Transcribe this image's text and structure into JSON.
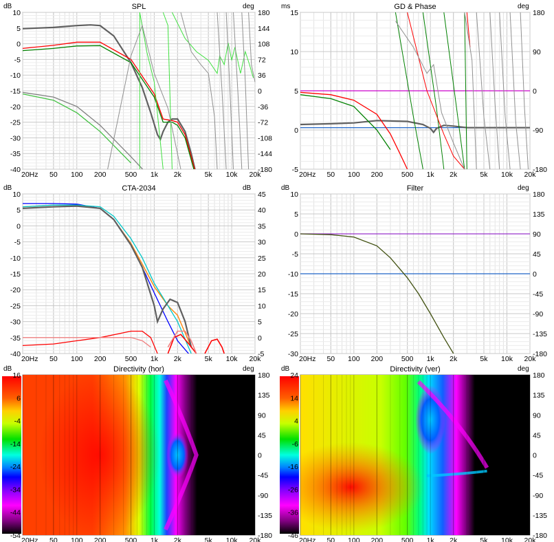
{
  "panels": [
    {
      "title": "SPL",
      "left_unit": "dB",
      "right_unit": "deg",
      "left_ticks": [
        "10",
        "5",
        "0",
        "-5",
        "-10",
        "-15",
        "-20",
        "-25",
        "-30",
        "-35",
        "-40"
      ],
      "right_ticks": [
        "180",
        "144",
        "108",
        "72",
        "36",
        "0",
        "-36",
        "-72",
        "-108",
        "-144",
        "-180"
      ],
      "x_ticks": [
        "20Hz",
        "50",
        "100",
        "200",
        "500",
        "1k",
        "2k",
        "5k",
        "10k",
        "20k"
      ]
    },
    {
      "title": "GD & Phase",
      "left_unit": "ms",
      "right_unit": "deg",
      "left_ticks": [
        "15",
        "10",
        "5",
        "0",
        "-5"
      ],
      "right_ticks": [
        "180",
        "90",
        "0",
        "-90",
        "-180"
      ],
      "x_ticks": [
        "20Hz",
        "50",
        "100",
        "200",
        "500",
        "1k",
        "2k",
        "5k",
        "10k",
        "20k"
      ]
    },
    {
      "title": "CTA-2034",
      "left_unit": "dB",
      "right_unit": "dB",
      "left_ticks": [
        "10",
        "5",
        "0",
        "-5",
        "-10",
        "-15",
        "-20",
        "-25",
        "-30",
        "-35",
        "-40"
      ],
      "right_ticks": [
        "45",
        "40",
        "35",
        "30",
        "25",
        "20",
        "15",
        "10",
        "5",
        "0",
        "-5"
      ],
      "x_ticks": [
        "20Hz",
        "50",
        "100",
        "200",
        "500",
        "1k",
        "2k",
        "5k",
        "10k",
        "20k"
      ]
    },
    {
      "title": "Filter",
      "left_unit": "dB",
      "right_unit": "deg",
      "left_ticks": [
        "10",
        "5",
        "0",
        "-5",
        "-10",
        "-15",
        "-20",
        "-25",
        "-30"
      ],
      "right_ticks": [
        "180",
        "135",
        "90",
        "45",
        "0",
        "-45",
        "-90",
        "-135",
        "-180"
      ],
      "x_ticks": [
        "20Hz",
        "50",
        "100",
        "200",
        "500",
        "1k",
        "2k",
        "5k",
        "10k",
        "20k"
      ]
    },
    {
      "title": "Directivity (hor)",
      "left_unit": "dB",
      "right_unit": "deg",
      "scale_ticks": [
        "16",
        "6",
        "-4",
        "-14",
        "-24",
        "-34",
        "-44",
        "-54"
      ],
      "right_ticks": [
        "180",
        "135",
        "90",
        "45",
        "0",
        "-45",
        "-90",
        "-135",
        "-180"
      ],
      "x_ticks": [
        "20Hz",
        "50",
        "100",
        "200",
        "500",
        "1k",
        "2k",
        "5k",
        "10k",
        "20k"
      ]
    },
    {
      "title": "Directivity (ver)",
      "left_unit": "dB",
      "right_unit": "deg",
      "scale_ticks": [
        "24",
        "14",
        "4",
        "-6",
        "-16",
        "-26",
        "-36",
        "-46"
      ],
      "right_ticks": [
        "180",
        "135",
        "90",
        "45",
        "0",
        "-45",
        "-90",
        "-135",
        "-180"
      ],
      "x_ticks": [
        "20Hz",
        "50",
        "100",
        "200",
        "500",
        "1k",
        "2k",
        "5k",
        "10k",
        "20k"
      ]
    }
  ],
  "chart_data": [
    {
      "type": "line",
      "title": "SPL",
      "xscale": "log",
      "xlim": [
        20,
        20000
      ],
      "ylim": [
        -40,
        10
      ],
      "y2lim": [
        -180,
        180
      ],
      "grid": true,
      "series": [
        {
          "color": "#606060",
          "x": [
            20,
            50,
            100,
            150,
            200,
            300,
            500,
            700,
            900,
            1100,
            1200,
            1300,
            1500,
            1700,
            2000,
            2500,
            3000,
            3500
          ],
          "y": [
            4.8,
            5.2,
            5.8,
            6.0,
            5.8,
            2.5,
            -6,
            -14,
            -22,
            -29,
            -30.5,
            -28,
            -25,
            -24,
            -24,
            -28,
            -35,
            -42
          ]
        },
        {
          "color": "#ff0000",
          "x": [
            20,
            50,
            100,
            200,
            500,
            1000,
            1300,
            1700,
            2000,
            2500,
            3000,
            3500
          ],
          "y": [
            -1.5,
            -0.5,
            0.5,
            0.5,
            -5,
            -16,
            -24,
            -24.5,
            -25,
            -29,
            -36,
            -42
          ]
        },
        {
          "color": "#008000",
          "x": [
            20,
            50,
            100,
            200,
            500,
            1000,
            1300,
            1700,
            2000,
            2500,
            3000,
            3500
          ],
          "y": [
            -2.2,
            -1.5,
            -0.7,
            -0.6,
            -6,
            -17,
            -25,
            -25,
            -26,
            -30,
            -37,
            -43
          ]
        },
        {
          "color": "#808080",
          "x": [
            20,
            50,
            100,
            200,
            500,
            1000
          ],
          "y": [
            -15.5,
            -17,
            -20,
            -26,
            -36,
            -44
          ]
        },
        {
          "color": "#40c040",
          "x": [
            20,
            50,
            100,
            200,
            500
          ],
          "y": [
            -16,
            -18,
            -22,
            -28,
            -38
          ]
        }
      ]
    },
    {
      "type": "line",
      "title": "GD & Phase",
      "xscale": "log",
      "xlim": [
        20,
        20000
      ],
      "ylim": [
        -5,
        15
      ],
      "y2lim": [
        -180,
        180
      ],
      "grid": true,
      "series": [
        {
          "color": "#cc00cc",
          "x": [
            20,
            20000
          ],
          "y": [
            5,
            5
          ]
        },
        {
          "color": "#1e64c8",
          "x": [
            20,
            20000
          ],
          "y": [
            0.3,
            0.3
          ]
        },
        {
          "color": "#606060",
          "x": [
            20,
            50,
            100,
            200,
            500,
            800,
            1000,
            1100,
            1200,
            1500,
            2000,
            3000,
            5000,
            10000,
            20000
          ],
          "y": [
            0.7,
            0.8,
            0.9,
            1.2,
            1.1,
            0.7,
            0.2,
            -0.3,
            0.2,
            0.6,
            0.5,
            0.3,
            0.3,
            0.3,
            0.3
          ]
        },
        {
          "color": "#ff0000",
          "x": [
            20,
            50,
            100,
            200,
            300,
            400,
            500
          ],
          "y": [
            4.8,
            4.5,
            3.8,
            2,
            -0.5,
            -3,
            -5
          ]
        },
        {
          "color": "#008000",
          "x": [
            20,
            50,
            100,
            200,
            300
          ],
          "y": [
            4.5,
            4,
            3,
            0,
            -2.5
          ]
        }
      ]
    },
    {
      "type": "line",
      "title": "CTA-2034",
      "xscale": "log",
      "xlim": [
        20,
        20000
      ],
      "ylim": [
        -40,
        10
      ],
      "y2lim": [
        -5,
        45
      ],
      "grid": true,
      "series": [
        {
          "color": "#0000ff",
          "x": [
            20,
            50,
            100,
            200,
            300,
            500,
            700,
            1000,
            1500,
            2000,
            3000
          ],
          "y": [
            7,
            7,
            6.8,
            5.5,
            2,
            -6,
            -13,
            -21,
            -30,
            -36,
            -41
          ]
        },
        {
          "color": "#ff8000",
          "x": [
            20,
            50,
            100,
            200,
            300,
            500,
            700,
            1000,
            1500,
            2000,
            3000
          ],
          "y": [
            6,
            6.5,
            6.5,
            5.5,
            2,
            -5.5,
            -12,
            -19,
            -25,
            -28,
            -38
          ]
        },
        {
          "color": "#00c8c8",
          "x": [
            20,
            50,
            100,
            200,
            300,
            500,
            700,
            1000,
            1500,
            2000,
            3000
          ],
          "y": [
            6,
            6.5,
            6.5,
            6,
            3,
            -4,
            -10,
            -18,
            -25,
            -30,
            -40
          ]
        },
        {
          "color": "#606060",
          "x": [
            20,
            50,
            100,
            200,
            300,
            500,
            700,
            1000,
            1100,
            1300,
            1600,
            2000,
            2500,
            3000
          ],
          "y": [
            5.5,
            6,
            6.2,
            5.5,
            2,
            -6,
            -13,
            -25,
            -30,
            -26,
            -23,
            -24,
            -30,
            -38
          ]
        },
        {
          "color": "#ff0000",
          "x": [
            20,
            50,
            100,
            200,
            500,
            700,
            900,
            1100
          ],
          "y": [
            -37.5,
            -37,
            -36,
            -35,
            -33,
            -33,
            -35,
            -40
          ]
        },
        {
          "color": "#f08080",
          "x": [
            20,
            50,
            100,
            200,
            500,
            700,
            900
          ],
          "y": [
            -35,
            -35,
            -35,
            -35,
            -35,
            -36,
            -38
          ]
        }
      ]
    },
    {
      "type": "line",
      "title": "Filter",
      "xscale": "log",
      "xlim": [
        20,
        20000
      ],
      "ylim": [
        -30,
        10
      ],
      "y2lim": [
        -180,
        180
      ],
      "grid": true,
      "series": [
        {
          "color": "#9933cc",
          "x": [
            20,
            20000
          ],
          "y": [
            0,
            0
          ]
        },
        {
          "color": "#1e64c8",
          "x": [
            20,
            20000
          ],
          "y": [
            -10,
            -10
          ]
        },
        {
          "color": "#405010",
          "x": [
            20,
            50,
            100,
            200,
            300,
            500,
            700,
            1000,
            1500,
            2000
          ],
          "y": [
            0,
            -0.2,
            -0.8,
            -3,
            -6,
            -11,
            -15,
            -20,
            -26,
            -30
          ]
        }
      ]
    },
    {
      "type": "heatmap",
      "title": "Directivity (hor)",
      "xscale": "log",
      "xlim": [
        20,
        20000
      ],
      "ylim": [
        -180,
        180
      ],
      "colorbar_range": [
        -54,
        16
      ]
    },
    {
      "type": "heatmap",
      "title": "Directivity (ver)",
      "xscale": "log",
      "xlim": [
        20,
        20000
      ],
      "ylim": [
        -180,
        180
      ],
      "colorbar_range": [
        -46,
        24
      ]
    }
  ]
}
